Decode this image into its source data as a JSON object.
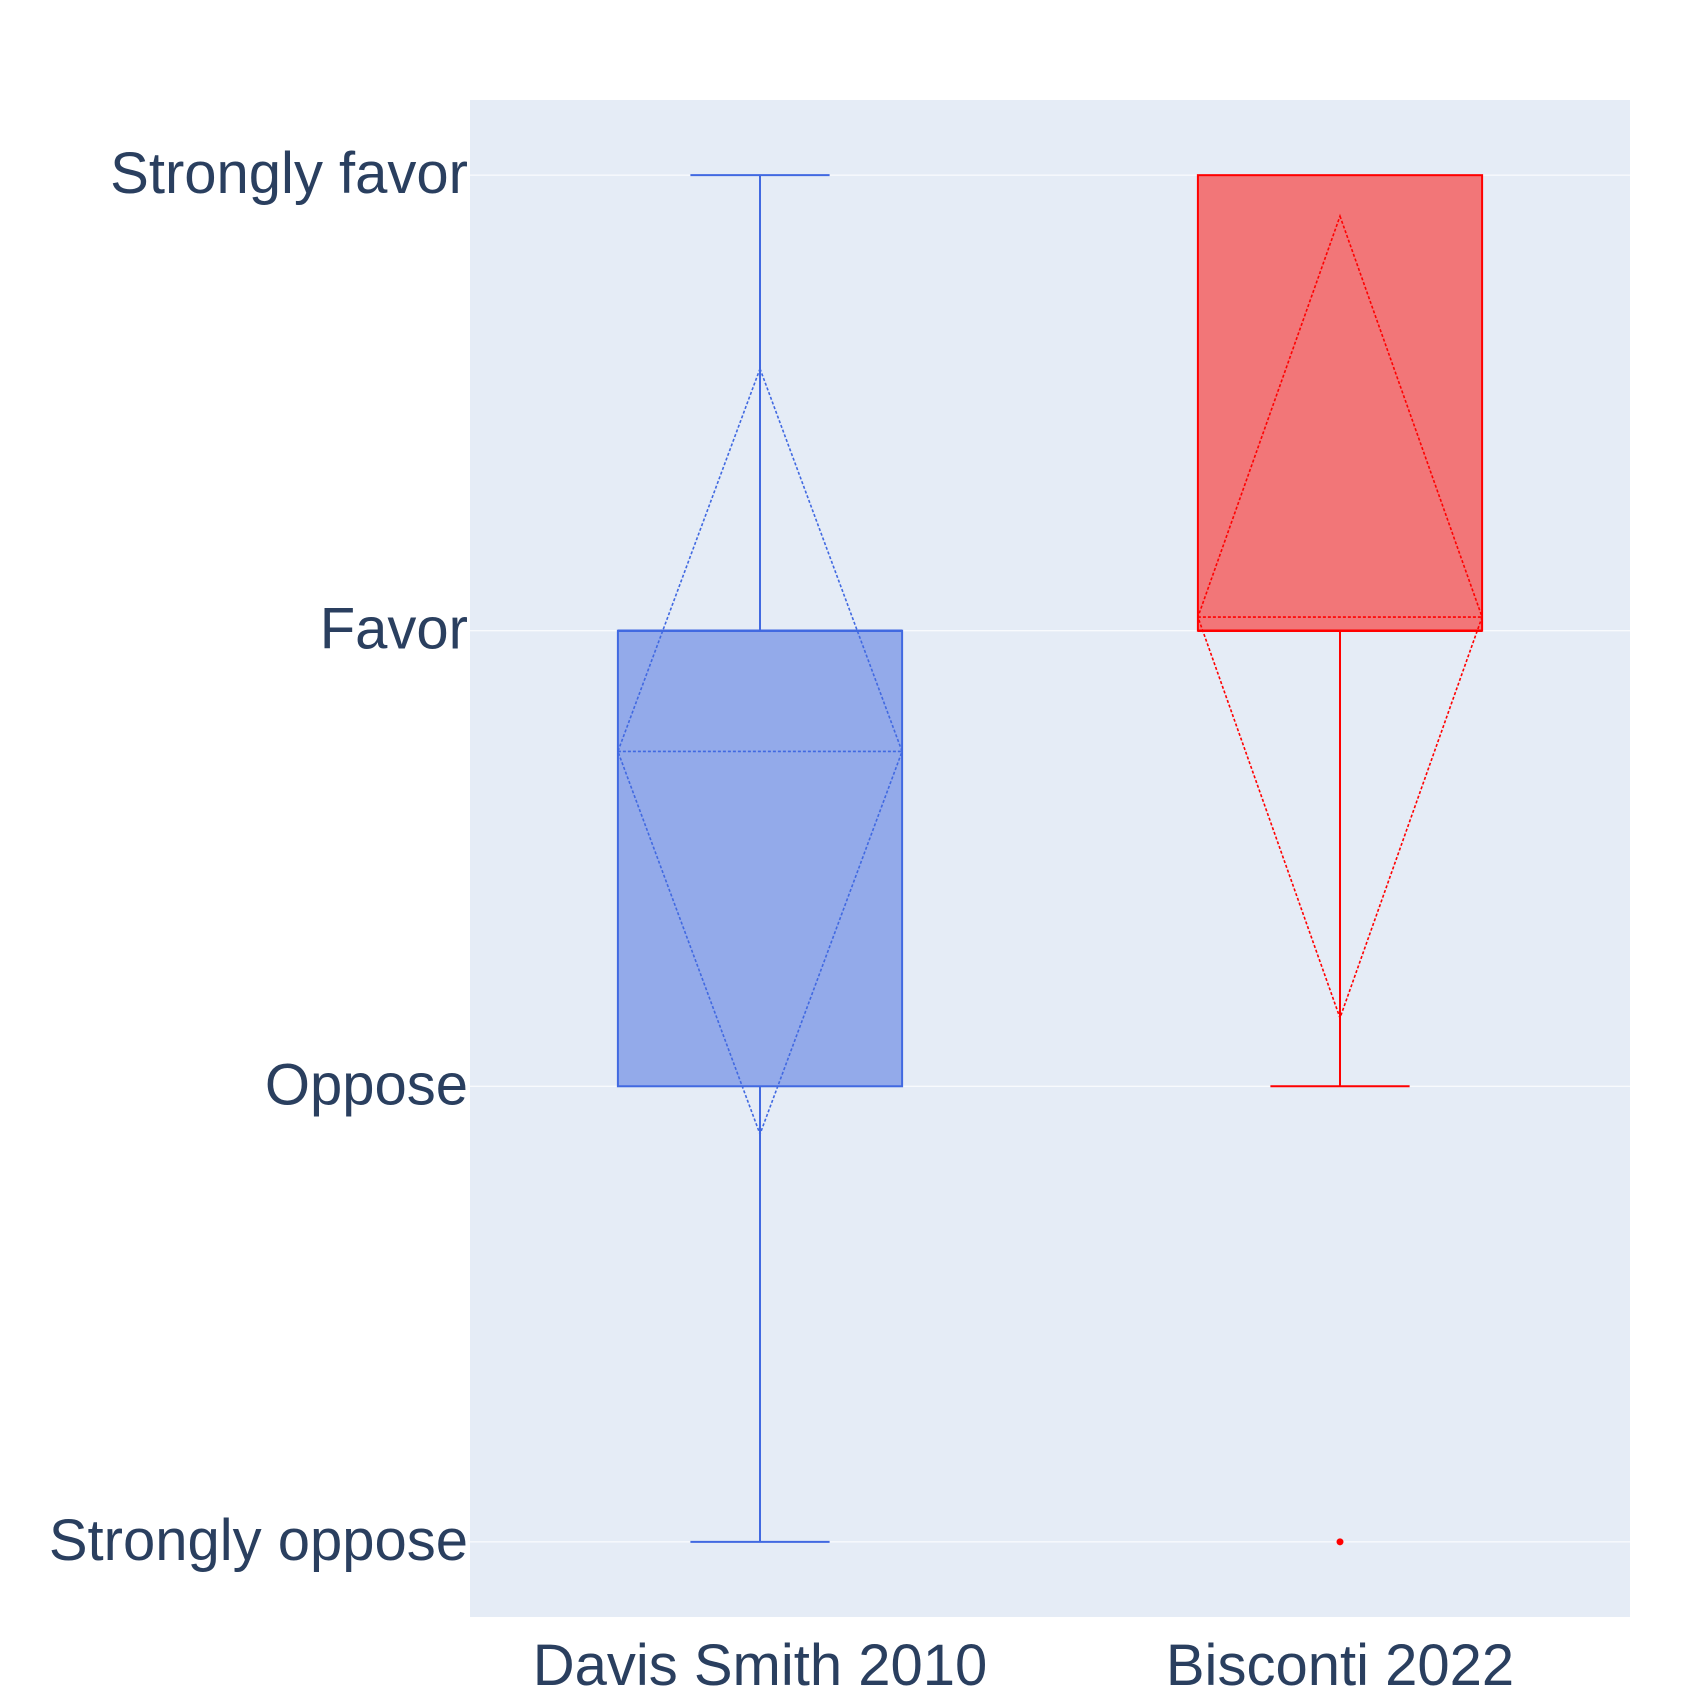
{
  "chart_data": {
    "type": "box",
    "y_categories": [
      "Strongly oppose",
      "Oppose",
      "Favor",
      "Strongly favor"
    ],
    "y_values": [
      1,
      2,
      3,
      4
    ],
    "ylim": [
      0.835,
      4.165
    ],
    "grid": true,
    "legend": "none",
    "background_color": "#e5ecf6",
    "tick_color": "#2a3f5f",
    "series": [
      {
        "name": "Davis Smith 2010",
        "color": "#4169e1",
        "fill": "#93aaea",
        "lower_fence": 1,
        "q1": 2,
        "median": 3,
        "q3": 3,
        "upper_fence": 4,
        "mean": 2.735,
        "sd": 0.84,
        "outliers": []
      },
      {
        "name": "Bisconti 2022",
        "color": "#ff0000",
        "fill": "#f27678",
        "lower_fence": 2,
        "q1": 3,
        "median": 3,
        "q3": 4,
        "upper_fence": 4,
        "mean": 3.03,
        "sd": 0.88,
        "outliers": [
          1
        ]
      }
    ]
  }
}
